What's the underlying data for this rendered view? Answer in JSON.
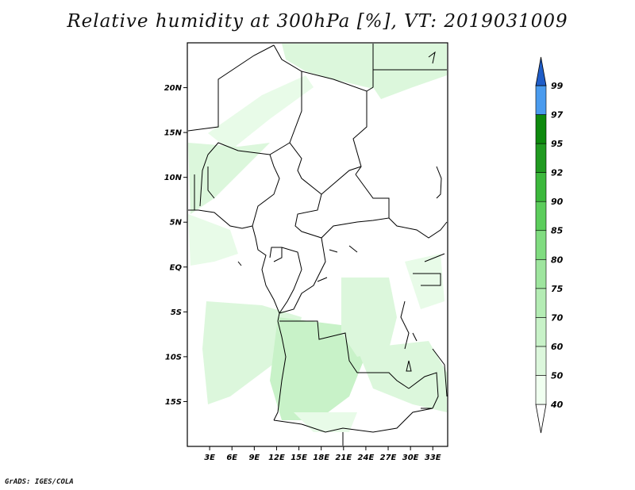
{
  "title": "Relative humidity at 300hPa [%], VT: 2019031009",
  "credit": "GrADS: IGES/COLA",
  "map": {
    "lon_range": [
      0,
      35
    ],
    "lat_range": [
      -20,
      25
    ],
    "lat_ticks": [
      "20N",
      "15N",
      "10N",
      "5N",
      "EQ",
      "5S",
      "10S",
      "15S"
    ],
    "lon_ticks": [
      "3E",
      "6E",
      "9E",
      "12E",
      "15E",
      "18E",
      "21E",
      "24E",
      "27E",
      "30E",
      "33E"
    ]
  },
  "colorbar": {
    "labels": [
      "40",
      "50",
      "60",
      "70",
      "75",
      "80",
      "85",
      "90",
      "92",
      "95",
      "97",
      "99"
    ],
    "colors": [
      "#f0fff0",
      "#dcf7dc",
      "#c8f2c8",
      "#b4ecb4",
      "#9ee59e",
      "#80dc80",
      "#5ccd5c",
      "#3cb83c",
      "#209a20",
      "#0e8a0e",
      "#4a9bee",
      "#2670dc",
      "#1f5dc8"
    ]
  },
  "colors": {
    "background": "#ffffff",
    "border": "#000000",
    "moist_light": "#dcf7dc",
    "moist_medium": "#b4ecb4"
  }
}
